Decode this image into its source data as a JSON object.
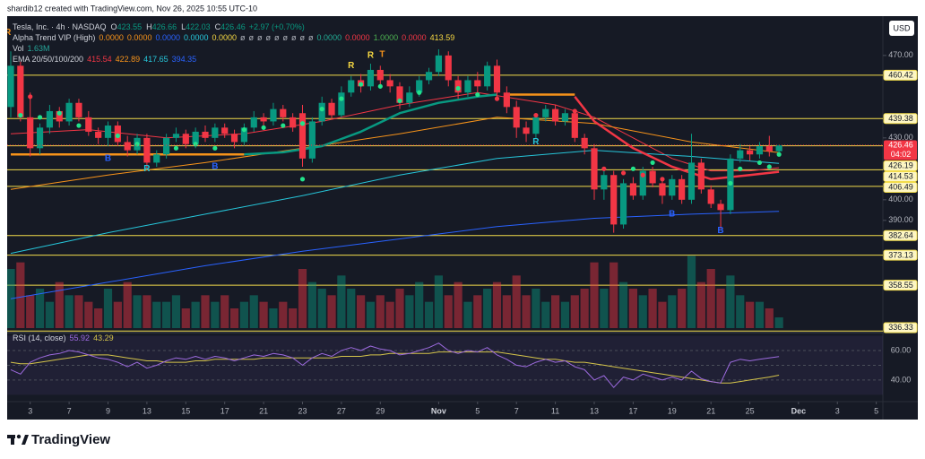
{
  "chart_data": {
    "type": "candlestick",
    "watermark": "shardib12 created with TradingView.com, Nov 26, 2025 10:55 UTC-10",
    "brand": "TradingView",
    "currency": "USD",
    "symbol": "Tesla, Inc. · 4h · NASDAQ",
    "ohlc_prefixes": [
      "O",
      "H",
      "L",
      "C"
    ],
    "change_label": "+2.97 (+0.70%)",
    "up_color": "#089981",
    "down_color": "#f23645",
    "ohlc": [
      [
        445,
        472,
        440,
        465
      ],
      [
        465,
        467,
        438,
        440
      ],
      [
        440,
        452,
        421,
        425
      ],
      [
        425,
        437,
        422,
        435
      ],
      [
        435,
        446,
        432,
        443
      ],
      [
        443,
        445,
        435,
        438
      ],
      [
        438,
        449,
        436,
        447
      ],
      [
        447,
        449,
        438,
        440
      ],
      [
        440,
        443,
        431,
        433
      ],
      [
        433,
        435,
        427,
        430
      ],
      [
        430,
        438,
        426,
        436
      ],
      [
        436,
        438,
        426,
        428
      ],
      [
        428,
        431,
        421,
        424
      ],
      [
        424,
        432,
        422,
        430
      ],
      [
        430,
        432,
        415,
        418
      ],
      [
        418,
        424,
        416,
        422
      ],
      [
        422,
        432,
        420,
        430
      ],
      [
        430,
        435,
        428,
        432
      ],
      [
        432,
        434,
        425,
        427
      ],
      [
        427,
        435,
        425,
        433
      ],
      [
        433,
        436,
        428,
        430
      ],
      [
        430,
        437,
        428,
        435
      ],
      [
        435,
        437,
        430,
        432
      ],
      [
        432,
        434,
        425,
        428
      ],
      [
        428,
        437,
        426,
        435
      ],
      [
        435,
        443,
        433,
        440
      ],
      [
        440,
        442,
        435,
        438
      ],
      [
        438,
        447,
        436,
        444
      ],
      [
        444,
        446,
        438,
        440
      ],
      [
        440,
        442,
        433,
        435
      ],
      [
        442,
        446,
        416,
        420
      ],
      [
        420,
        440,
        418,
        438
      ],
      [
        438,
        450,
        436,
        447
      ],
      [
        447,
        449,
        439,
        441
      ],
      [
        441,
        455,
        440,
        452
      ],
      [
        452,
        460,
        450,
        458
      ],
      [
        458,
        461,
        452,
        455
      ],
      [
        455,
        466,
        453,
        463
      ],
      [
        463,
        465,
        456,
        458
      ],
      [
        458,
        461,
        452,
        455
      ],
      [
        455,
        457,
        444,
        447
      ],
      [
        447,
        455,
        445,
        452
      ],
      [
        452,
        460,
        450,
        458
      ],
      [
        458,
        464,
        456,
        462
      ],
      [
        462,
        473,
        460,
        470
      ],
      [
        470,
        472,
        455,
        458
      ],
      [
        458,
        460,
        449,
        452
      ],
      [
        452,
        460,
        450,
        458
      ],
      [
        458,
        462,
        452,
        455
      ],
      [
        455,
        467,
        453,
        465
      ],
      [
        465,
        468,
        448,
        452
      ],
      [
        452,
        455,
        442,
        445
      ],
      [
        445,
        448,
        430,
        435
      ],
      [
        435,
        438,
        428,
        432
      ],
      [
        432,
        442,
        430,
        440
      ],
      [
        440,
        446,
        438,
        444
      ],
      [
        444,
        446,
        436,
        438
      ],
      [
        438,
        444,
        436,
        442
      ],
      [
        442,
        444,
        428,
        430
      ],
      [
        430,
        432,
        422,
        425
      ],
      [
        425,
        427,
        400,
        405
      ],
      [
        405,
        414,
        400,
        412
      ],
      [
        412,
        414,
        384,
        388
      ],
      [
        388,
        410,
        386,
        408
      ],
      [
        408,
        411,
        400,
        402
      ],
      [
        402,
        416,
        400,
        414
      ],
      [
        414,
        416,
        406,
        408
      ],
      [
        408,
        410,
        398,
        402
      ],
      [
        402,
        412,
        400,
        410
      ],
      [
        410,
        412,
        398,
        400
      ],
      [
        400,
        432,
        398,
        418
      ],
      [
        418,
        420,
        403,
        405
      ],
      [
        405,
        407,
        396,
        398
      ],
      [
        398,
        400,
        386,
        395
      ],
      [
        395,
        422,
        393,
        420
      ],
      [
        420,
        427,
        418,
        424
      ],
      [
        424,
        426,
        419,
        422
      ],
      [
        422,
        428,
        420,
        426
      ],
      [
        426,
        431,
        421,
        423.49
      ],
      [
        423.55,
        426.66,
        422.03,
        426.46
      ]
    ],
    "ylim": [
      336,
      488.2
    ],
    "yticks": [
      {
        "value": 470,
        "label": "470.00"
      },
      {
        "value": 430,
        "label": "430.00"
      },
      {
        "value": 400,
        "label": "400.00"
      },
      {
        "value": 390,
        "label": "390.00"
      }
    ],
    "xticks": [
      {
        "value": 2,
        "label": "3"
      },
      {
        "value": 6,
        "label": "7"
      },
      {
        "value": 10,
        "label": "9"
      },
      {
        "value": 14,
        "label": "13"
      },
      {
        "value": 18,
        "label": "15"
      },
      {
        "value": 22,
        "label": "17"
      },
      {
        "value": 26,
        "label": "21"
      },
      {
        "value": 30,
        "label": "23"
      },
      {
        "value": 34,
        "label": "27"
      },
      {
        "value": 38,
        "label": "29"
      },
      {
        "value": 44,
        "label": "Nov"
      },
      {
        "value": 48,
        "label": "5"
      },
      {
        "value": 52,
        "label": "7"
      },
      {
        "value": 56,
        "label": "11"
      },
      {
        "value": 60,
        "label": "13"
      },
      {
        "value": 64,
        "label": "17"
      },
      {
        "value": 68,
        "label": "19"
      },
      {
        "value": 72,
        "label": "21"
      },
      {
        "value": 76,
        "label": "25"
      },
      {
        "value": 81,
        "label": "Dec"
      },
      {
        "value": 85,
        "label": "3"
      },
      {
        "value": 89,
        "label": "5"
      }
    ],
    "xlim": [
      -0.4,
      89.6
    ],
    "countdown": "04:02",
    "level_color": "#f2dc4b",
    "levels": [
      460.42,
      439.38,
      426.19,
      414.53,
      406.49,
      382.64,
      373.13,
      358.55,
      336.33
    ],
    "volume": {
      "name": "Vol",
      "value_label": "1.63M",
      "lim": [
        0,
        12
      ],
      "values": [
        9,
        10,
        5,
        6,
        4,
        7,
        5,
        5,
        4,
        3,
        6,
        4,
        7,
        5,
        5,
        4,
        4,
        5,
        3,
        4,
        5,
        4,
        5,
        3,
        4,
        5,
        4,
        3,
        4,
        3,
        9,
        7,
        6,
        5,
        8,
        6,
        5,
        4,
        5,
        4,
        6,
        5,
        7,
        4,
        8,
        5,
        7,
        4,
        5,
        6,
        7,
        5,
        8,
        5,
        6,
        4,
        5,
        4,
        5,
        6,
        10,
        6,
        10,
        7,
        6,
        5,
        6,
        4,
        5,
        6,
        11,
        7,
        9,
        6,
        8,
        5,
        4,
        4,
        3,
        1.63
      ]
    },
    "alpha_name": "Alpha Trend VIP (High)",
    "alpha_legend": [
      {
        "text": "0.0000",
        "color": "#f7931a"
      },
      {
        "text": "0.0000",
        "color": "#f7931a"
      },
      {
        "text": "0.0000",
        "color": "#2962ff"
      },
      {
        "text": "0.0000",
        "color": "#26c6da"
      },
      {
        "text": "0.0000",
        "color": "#f5d742"
      },
      {
        "text": "ø",
        "color": "#b2b5be"
      },
      {
        "text": "ø",
        "color": "#b2b5be"
      },
      {
        "text": "ø",
        "color": "#b2b5be"
      },
      {
        "text": "ø",
        "color": "#b2b5be"
      },
      {
        "text": "ø",
        "color": "#b2b5be"
      },
      {
        "text": "ø",
        "color": "#b2b5be"
      },
      {
        "text": "ø",
        "color": "#b2b5be"
      },
      {
        "text": "ø",
        "color": "#b2b5be"
      },
      {
        "text": "ø",
        "color": "#b2b5be"
      },
      {
        "text": "0.0000",
        "color": "#22ab94"
      },
      {
        "text": "0.0000",
        "color": "#f23645"
      },
      {
        "text": "1.0000",
        "color": "#4caf50"
      },
      {
        "text": "0.0000",
        "color": "#f23645"
      }
    ],
    "alpha_trend": [
      {
        "color": "#f7931a",
        "x": [
          0,
          24
        ],
        "values": [
          422,
          422
        ]
      },
      {
        "color": "#089981",
        "x": [
          24,
          28,
          32,
          36,
          40,
          44,
          48,
          50
        ],
        "values": [
          422,
          423,
          426,
          433,
          442,
          447,
          450,
          451
        ]
      },
      {
        "color": "#f7931a",
        "x": [
          51,
          58
        ],
        "values": [
          451,
          451
        ]
      },
      {
        "color": "#f23645",
        "x": [
          58,
          60,
          64,
          68,
          72,
          76,
          79
        ],
        "values": [
          450,
          438,
          425,
          416,
          410,
          412,
          413.59
        ]
      }
    ],
    "ema_name": "EMA 20/50/100/200",
    "ema": [
      {
        "color": "#f23645",
        "x": [
          0,
          8,
          16,
          24,
          32,
          40,
          48,
          56,
          60,
          64,
          68,
          72,
          76,
          79
        ],
        "values": [
          432,
          434,
          430,
          432,
          438,
          446,
          452,
          446,
          440,
          430,
          420,
          414,
          414,
          415.54
        ]
      },
      {
        "color": "#f7931a",
        "x": [
          0,
          10,
          20,
          30,
          40,
          50,
          60,
          70,
          79
        ],
        "values": [
          405,
          412,
          418,
          425,
          432,
          440,
          437,
          428,
          422.89
        ]
      },
      {
        "color": "#26c6da",
        "x": [
          0,
          10,
          20,
          30,
          40,
          50,
          60,
          70,
          79
        ],
        "values": [
          374,
          384,
          393,
          402,
          412,
          420,
          424,
          421,
          417.65
        ]
      },
      {
        "color": "#2962ff",
        "x": [
          0,
          10,
          20,
          30,
          40,
          50,
          60,
          70,
          79
        ],
        "values": [
          352,
          360,
          368,
          375,
          381,
          387,
          391,
          393,
          394.35
        ]
      }
    ],
    "dots": [
      {
        "color": "#22e38b",
        "x": [
          1,
          3,
          5,
          7,
          11,
          13,
          17,
          19,
          21,
          24,
          26,
          28,
          30,
          32,
          34,
          36,
          38,
          40,
          42,
          46,
          48,
          64,
          66,
          74,
          75,
          77,
          78,
          79,
          30
        ],
        "values": [
          441,
          440,
          442,
          436,
          431,
          427,
          425,
          427,
          425,
          434,
          435,
          436,
          437,
          444,
          449,
          456,
          455,
          448,
          452,
          454,
          451,
          415,
          418,
          408,
          415,
          418,
          416,
          422,
          410
        ]
      },
      {
        "color": "#f23645",
        "x": [
          2,
          50,
          54,
          56,
          58,
          61,
          63,
          65,
          67,
          69,
          71
        ],
        "values": [
          450,
          449,
          441,
          443,
          443,
          415,
          413,
          412,
          410,
          408,
          410
        ]
      }
    ],
    "signals": [
      {
        "text": "R",
        "x": -0.3,
        "price": 481,
        "color": "#f7931a"
      },
      {
        "text": "B",
        "x": 10,
        "price": 420,
        "color": "#2962ff"
      },
      {
        "text": "R",
        "x": 14,
        "price": 415,
        "color": "#26c6da"
      },
      {
        "text": "B",
        "x": 21,
        "price": 416,
        "color": "#2962ff"
      },
      {
        "text": "R",
        "x": 35,
        "price": 465,
        "color": "#f5d742"
      },
      {
        "text": "R",
        "x": 37,
        "price": 470,
        "color": "#f5d742"
      },
      {
        "text": "T",
        "x": 38.2,
        "price": 470.4,
        "color": "#f7931a"
      },
      {
        "text": "R",
        "x": 54,
        "price": 428,
        "color": "#26c6da"
      },
      {
        "text": "B",
        "x": 68,
        "price": 393,
        "color": "#2962ff"
      },
      {
        "text": "B",
        "x": 73,
        "price": 385,
        "color": "#2962ff"
      }
    ],
    "rsi": {
      "name": "RSI (14, close)",
      "ylim": [
        26,
        71.5
      ],
      "yticks": [
        {
          "value": 60,
          "label": "60.00"
        },
        {
          "value": 40,
          "label": "40.00"
        }
      ],
      "band": [
        30,
        70
      ],
      "midline": 50,
      "color": "#9c6ade",
      "ma_color": "#d4c44a",
      "values": [
        47,
        44,
        52,
        55,
        57,
        58,
        60,
        59,
        57,
        55,
        54,
        52,
        49,
        52,
        48,
        50,
        53,
        55,
        54,
        56,
        54,
        56,
        55,
        53,
        55,
        57,
        56,
        58,
        57,
        55,
        50,
        55,
        58,
        56,
        60,
        62,
        60,
        63,
        61,
        60,
        57,
        58,
        60,
        62,
        65,
        60,
        58,
        60,
        59,
        62,
        57,
        54,
        50,
        49,
        52,
        54,
        52,
        53,
        49,
        47,
        40,
        43,
        35,
        42,
        40,
        44,
        42,
        40,
        42,
        40,
        46,
        41,
        39,
        38,
        52,
        54,
        53,
        54,
        55,
        55.92
      ],
      "ma": [
        52,
        51,
        51,
        52,
        53,
        54,
        55,
        56,
        57,
        57,
        57,
        56,
        55,
        54,
        53,
        53,
        52,
        52,
        52,
        53,
        53,
        54,
        54,
        54,
        54,
        54,
        55,
        55,
        55,
        55,
        55,
        55,
        55,
        55,
        56,
        56,
        56,
        57,
        57,
        58,
        58,
        58,
        58,
        58,
        59,
        59,
        59,
        59,
        59,
        59,
        59,
        58,
        57,
        56,
        55,
        54,
        54,
        53,
        52,
        52,
        51,
        50,
        49,
        48,
        47,
        46,
        45,
        44,
        43,
        42,
        41,
        40,
        39,
        38,
        38,
        39,
        40,
        41,
        42,
        43.29
      ]
    }
  }
}
